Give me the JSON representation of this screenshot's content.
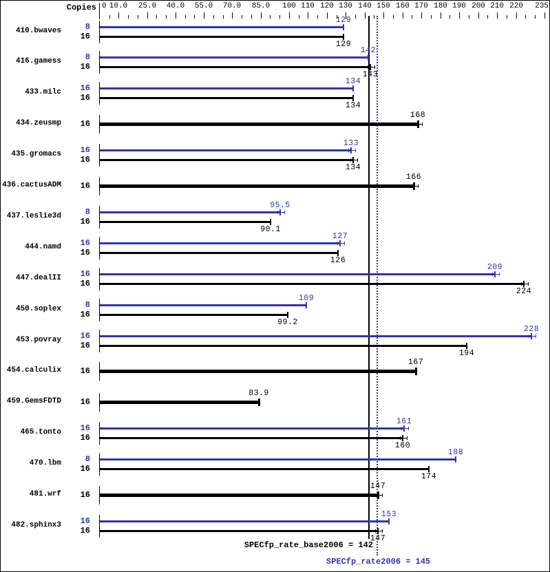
{
  "chart_data": {
    "type": "bar",
    "orientation": "horizontal",
    "title": "",
    "copies_header": "Copies",
    "series_colors": {
      "peak": "#3333aa",
      "base": "#000000"
    },
    "x_axis": {
      "min": 0,
      "max": 235,
      "minor_tick_step": 5,
      "labeled_ticks": [
        {
          "value": 0,
          "label": "0"
        },
        {
          "value": 10,
          "label": "10.0"
        },
        {
          "value": 25,
          "label": "25.0"
        },
        {
          "value": 40,
          "label": "40.0"
        },
        {
          "value": 55,
          "label": "55.0"
        },
        {
          "value": 70,
          "label": "70.0"
        },
        {
          "value": 85,
          "label": "85.0"
        },
        {
          "value": 100,
          "label": "100"
        },
        {
          "value": 110,
          "label": "110"
        },
        {
          "value": 120,
          "label": "120"
        },
        {
          "value": 130,
          "label": "130"
        },
        {
          "value": 140,
          "label": "140"
        },
        {
          "value": 150,
          "label": "150"
        },
        {
          "value": 160,
          "label": "160"
        },
        {
          "value": 170,
          "label": "170"
        },
        {
          "value": 180,
          "label": "180"
        },
        {
          "value": 190,
          "label": "190"
        },
        {
          "value": 200,
          "label": "200"
        },
        {
          "value": 210,
          "label": "210"
        },
        {
          "value": 220,
          "label": "220"
        },
        {
          "value": 235,
          "label": "235"
        }
      ]
    },
    "benchmarks": [
      {
        "name": "410.bwaves",
        "bars": [
          {
            "copies": "8",
            "kind": "peak",
            "value": 129,
            "label": "129",
            "whisker": false
          },
          {
            "copies": "16",
            "kind": "base",
            "value": 129,
            "label": "129",
            "whisker": false
          }
        ]
      },
      {
        "name": "416.gamess",
        "bars": [
          {
            "copies": "8",
            "kind": "peak",
            "value": 142,
            "label": "142",
            "whisker": false
          },
          {
            "copies": "16",
            "kind": "base",
            "value": 143,
            "label": "143",
            "whisker": true
          }
        ]
      },
      {
        "name": "433.milc",
        "bars": [
          {
            "copies": "16",
            "kind": "peak",
            "value": 134,
            "label": "134",
            "whisker": false
          },
          {
            "copies": "16",
            "kind": "base",
            "value": 134,
            "label": "134",
            "whisker": false
          }
        ]
      },
      {
        "name": "434.zeusmp",
        "bars": [
          {
            "copies": "16",
            "kind": "single",
            "value": 168,
            "label": "168",
            "whisker": true
          }
        ]
      },
      {
        "name": "435.gromacs",
        "bars": [
          {
            "copies": "16",
            "kind": "peak",
            "value": 133,
            "label": "133",
            "whisker": true
          },
          {
            "copies": "16",
            "kind": "base",
            "value": 134,
            "label": "134",
            "whisker": true
          }
        ]
      },
      {
        "name": "436.cactusADM",
        "bars": [
          {
            "copies": "16",
            "kind": "single",
            "value": 166,
            "label": "166",
            "whisker": true
          }
        ]
      },
      {
        "name": "437.leslie3d",
        "bars": [
          {
            "copies": "8",
            "kind": "peak",
            "value": 95.5,
            "label": "95.5",
            "whisker": true
          },
          {
            "copies": "16",
            "kind": "base",
            "value": 90.1,
            "label": "90.1",
            "whisker": false
          }
        ]
      },
      {
        "name": "444.namd",
        "bars": [
          {
            "copies": "16",
            "kind": "peak",
            "value": 127,
            "label": "127",
            "whisker": true
          },
          {
            "copies": "16",
            "kind": "base",
            "value": 126,
            "label": "126",
            "whisker": false
          }
        ]
      },
      {
        "name": "447.dealII",
        "bars": [
          {
            "copies": "16",
            "kind": "peak",
            "value": 209,
            "label": "209",
            "whisker": true
          },
          {
            "copies": "16",
            "kind": "base",
            "value": 224,
            "label": "224",
            "whisker": true
          }
        ]
      },
      {
        "name": "450.soplex",
        "bars": [
          {
            "copies": "8",
            "kind": "peak",
            "value": 109,
            "label": "109",
            "whisker": false
          },
          {
            "copies": "16",
            "kind": "base",
            "value": 99.2,
            "label": "99.2",
            "whisker": false
          }
        ]
      },
      {
        "name": "453.povray",
        "bars": [
          {
            "copies": "16",
            "kind": "peak",
            "value": 228,
            "label": "228",
            "whisker": true
          },
          {
            "copies": "16",
            "kind": "base",
            "value": 194,
            "label": "194",
            "whisker": false
          }
        ]
      },
      {
        "name": "454.calculix",
        "bars": [
          {
            "copies": "16",
            "kind": "single",
            "value": 167,
            "label": "167",
            "whisker": false
          }
        ]
      },
      {
        "name": "459.GemsFDTD",
        "bars": [
          {
            "copies": "16",
            "kind": "single",
            "value": 83.9,
            "label": "83.9",
            "whisker": false
          }
        ]
      },
      {
        "name": "465.tonto",
        "bars": [
          {
            "copies": "16",
            "kind": "peak",
            "value": 161,
            "label": "161",
            "whisker": true
          },
          {
            "copies": "16",
            "kind": "base",
            "value": 160,
            "label": "160",
            "whisker": true
          }
        ]
      },
      {
        "name": "470.lbm",
        "bars": [
          {
            "copies": "8",
            "kind": "peak",
            "value": 188,
            "label": "188",
            "whisker": false
          },
          {
            "copies": "16",
            "kind": "base",
            "value": 174,
            "label": "174",
            "whisker": false
          }
        ]
      },
      {
        "name": "481.wrf",
        "bars": [
          {
            "copies": "16",
            "kind": "single",
            "value": 147,
            "label": "147",
            "whisker": true
          }
        ]
      },
      {
        "name": "482.sphinx3",
        "bars": [
          {
            "copies": "16",
            "kind": "peak",
            "value": 153,
            "label": "153",
            "whisker": false
          },
          {
            "copies": "16",
            "kind": "base",
            "value": 147,
            "label": "147",
            "whisker": true
          }
        ]
      }
    ],
    "reference_lines": [
      {
        "kind": "base",
        "value": 142,
        "style": "solid",
        "color": "#000000",
        "label": "SPECfp_rate_base2006 = 142"
      },
      {
        "kind": "peak",
        "value": 145,
        "style": "dotted",
        "color": "#3333aa",
        "label": "SPECfp_rate2006 = 145"
      }
    ]
  }
}
